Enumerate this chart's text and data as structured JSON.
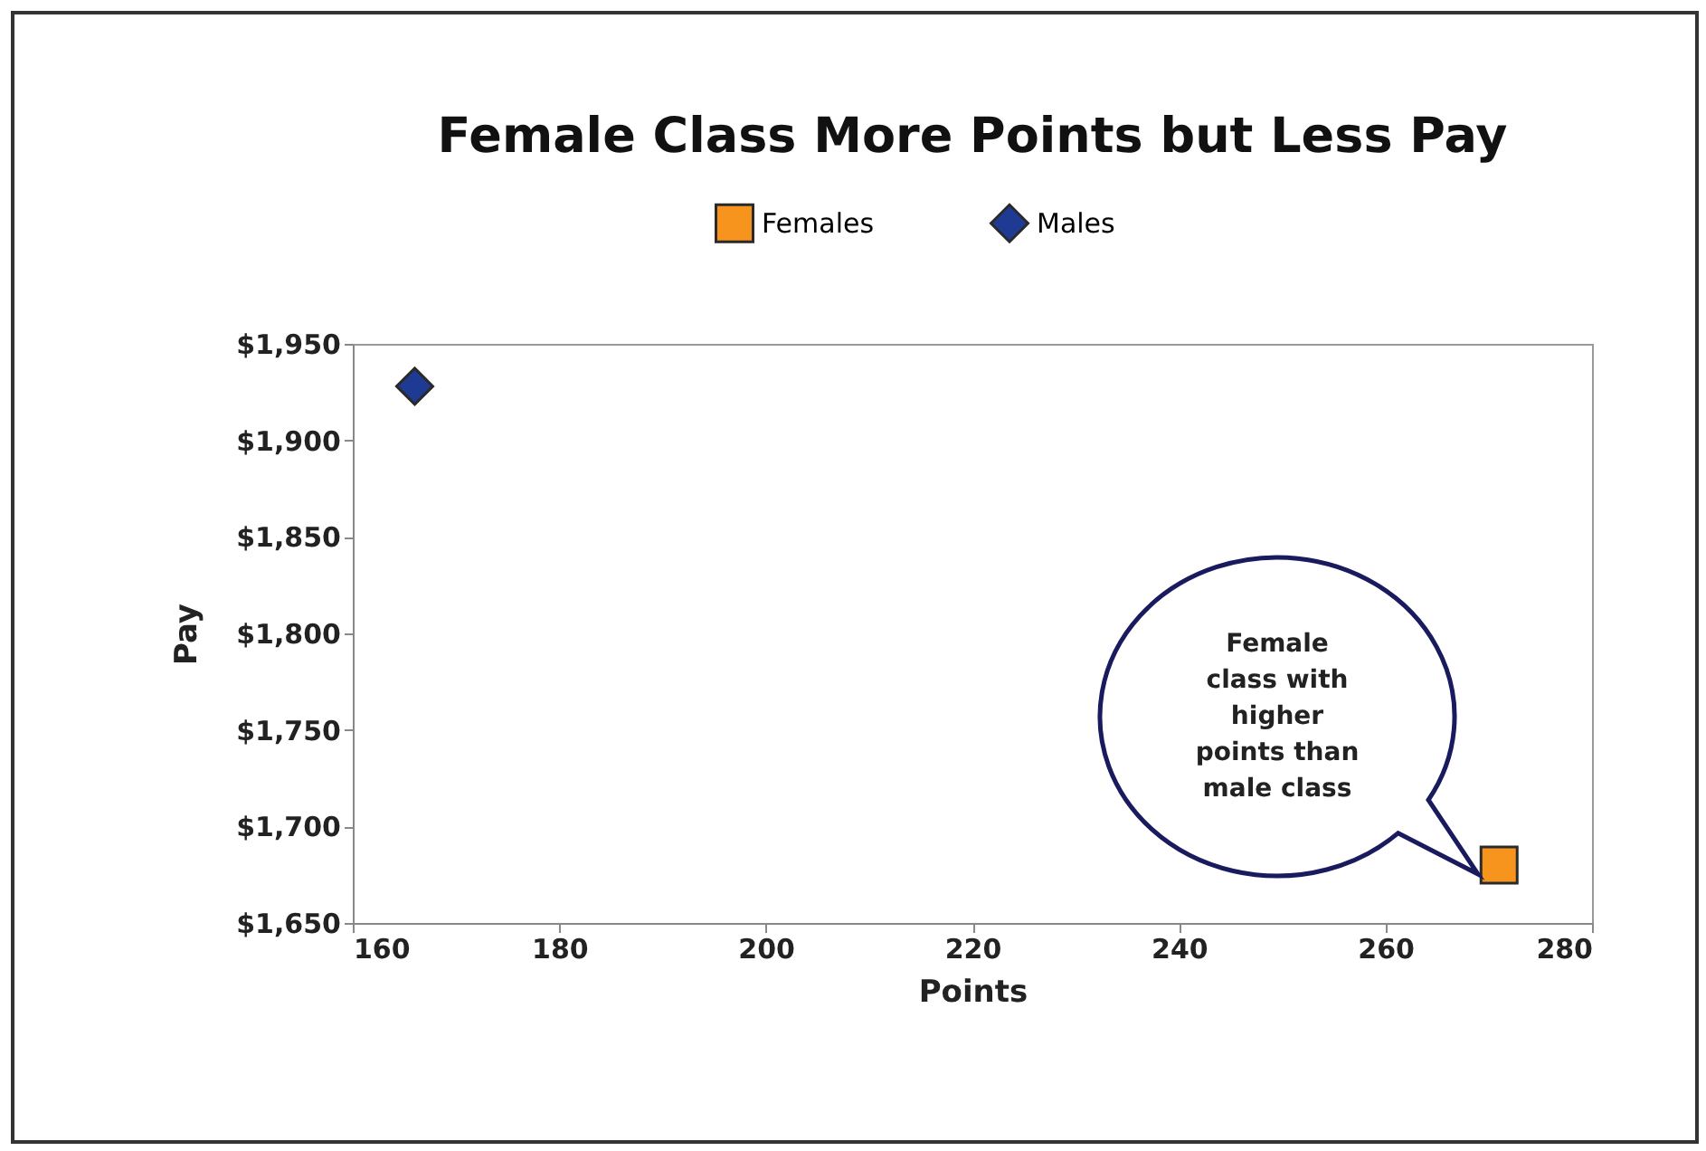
{
  "chart_data": {
    "type": "scatter",
    "title": "Female Class More Points but Less Pay",
    "xlabel": "Points",
    "ylabel": "Pay",
    "legend": "top",
    "series": [
      {
        "name": "Females",
        "color": "#f7941d",
        "marker": "square",
        "x": [
          271
        ],
        "values": [
          1680
        ]
      },
      {
        "name": "Males",
        "color": "#1f3a93",
        "marker": "diamond",
        "x": [
          166
        ],
        "values": [
          1928
        ]
      }
    ],
    "xlim": [
      160,
      280
    ],
    "xticks": [
      160,
      180,
      200,
      220,
      240,
      260,
      280
    ],
    "ylim": [
      1650,
      1950
    ],
    "yticks": [
      {
        "value": 1650,
        "label": "$1,650"
      },
      {
        "value": 1700,
        "label": "$1,700"
      },
      {
        "value": 1750,
        "label": "$1,750"
      },
      {
        "value": 1800,
        "label": "$1,800"
      },
      {
        "value": 1850,
        "label": "$1,850"
      },
      {
        "value": 1900,
        "label": "$1,900"
      },
      {
        "value": 1950,
        "label": "$1,950"
      }
    ],
    "annotations": [
      "Female class with higher points than male class"
    ]
  }
}
